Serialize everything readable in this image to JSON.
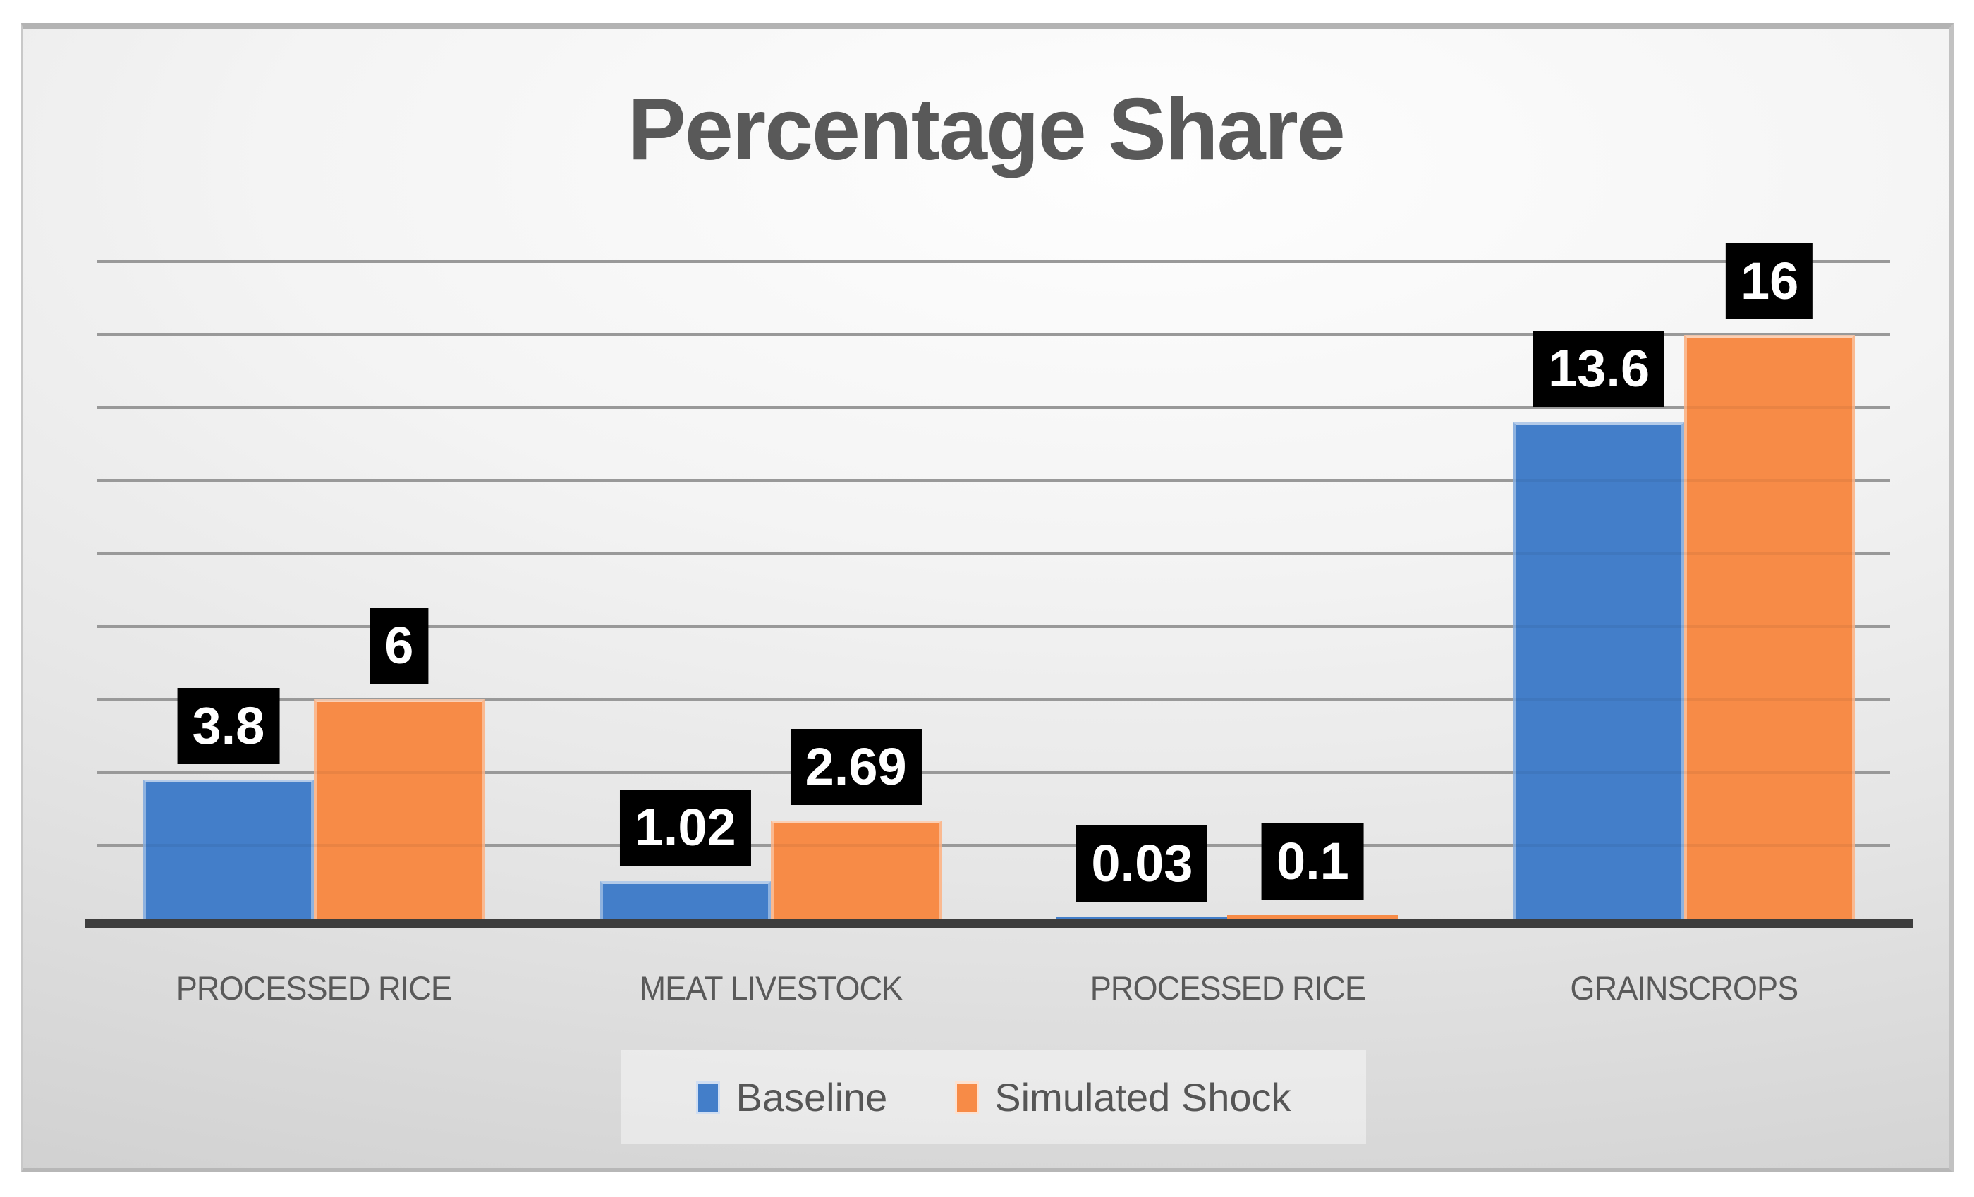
{
  "chart_data": {
    "type": "bar",
    "title": "Percentage Share",
    "categories": [
      "PROCESSED RICE",
      "MEAT LIVESTOCK",
      "PROCESSED RICE",
      "GRAINSCROPS"
    ],
    "series": [
      {
        "name": "Baseline",
        "color": "#437EC9",
        "values": [
          3.8,
          1.02,
          0.03,
          13.6
        ],
        "labels": [
          "3.8",
          "1.02",
          "0.03",
          "13.6"
        ]
      },
      {
        "name": "Simulated Shock",
        "color": "#F78B47",
        "values": [
          6,
          2.69,
          0.1,
          16
        ],
        "labels": [
          "6",
          "2.69",
          "0.1",
          "16"
        ]
      }
    ],
    "ylim": [
      0,
      18
    ],
    "gridline_step": 2,
    "grid": true,
    "value_axis_labels_visible": false,
    "legend_position": "bottom",
    "data_label_style": {
      "background": "#000000",
      "text_color": "#FFFFFF"
    },
    "text_color": "#595959",
    "gridline_color": "#A2A2A2",
    "axis_line_color": "#3D3D3D"
  },
  "legend": {
    "items": [
      {
        "label": "Baseline",
        "color": "#437EC9"
      },
      {
        "label": "Simulated Shock",
        "color": "#F78B47"
      }
    ]
  }
}
